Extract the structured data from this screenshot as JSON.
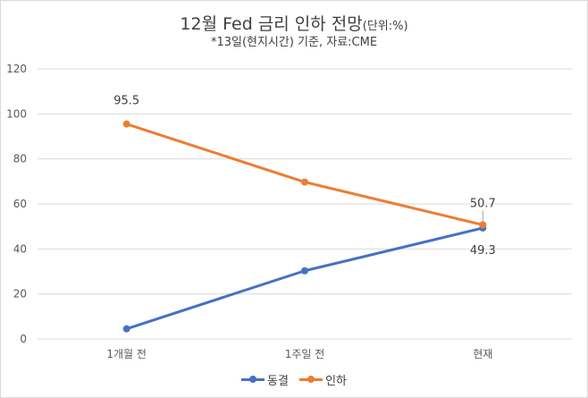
{
  "chart_data": {
    "type": "line",
    "title": "12월 Fed 금리 인하 전망",
    "title_unit": "(단위:%)",
    "subtitle": "*13일(현지시간) 기준, 자료:CME",
    "categories": [
      "1개월 전",
      "1주일 전",
      "현재"
    ],
    "series": [
      {
        "name": "동결",
        "values": [
          4.5,
          30.3,
          49.3
        ],
        "color": "#4472c4",
        "labels": [
          null,
          null,
          "49.3"
        ]
      },
      {
        "name": "인하",
        "values": [
          95.5,
          69.7,
          50.7
        ],
        "color": "#ed7d31",
        "labels": [
          "95.5",
          null,
          "50.7"
        ]
      }
    ],
    "ylim": [
      0,
      120
    ],
    "yticks": [
      "0",
      "20",
      "40",
      "60",
      "80",
      "100",
      "120"
    ],
    "grid": true,
    "legend_position": "bottom"
  }
}
